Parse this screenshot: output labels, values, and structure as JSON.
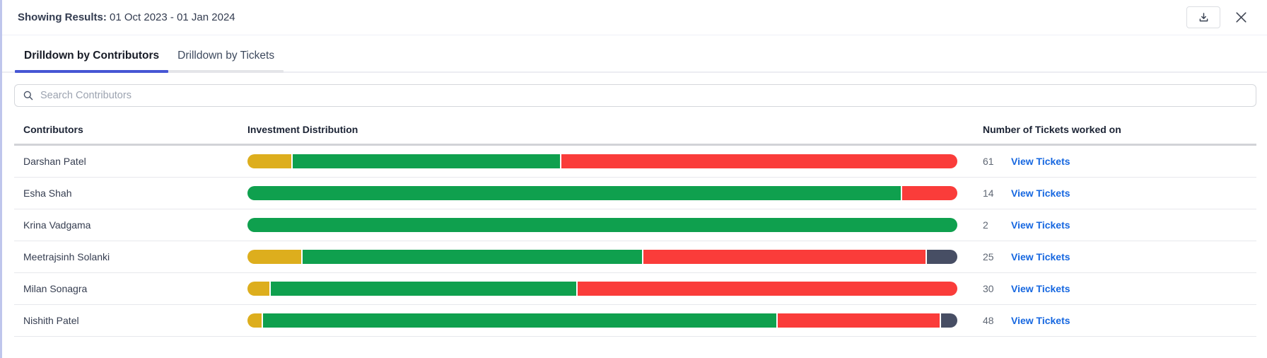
{
  "modal": {
    "results_label": "Showing Results:",
    "date_range": "01 Oct 2023 - 01 Jan 2024"
  },
  "tabs": [
    {
      "label": "Drilldown by Contributors",
      "active": true
    },
    {
      "label": "Drilldown by Tickets",
      "active": false
    }
  ],
  "search": {
    "placeholder": "Search Contributors",
    "icon": "search-icon"
  },
  "icons": {
    "download": "download-icon",
    "close": "close-icon"
  },
  "table": {
    "columns": {
      "contributors": "Contributors",
      "distribution": "Investment Distribution",
      "tickets": "Number of Tickets worked on"
    },
    "link_label": "View Tickets",
    "rows": [
      {
        "name": "Darshan Patel",
        "tickets": "61",
        "segments": [
          {
            "color": "yellow",
            "pct": 6.2
          },
          {
            "color": "green",
            "pct": 37.8
          },
          {
            "color": "red",
            "pct": 56.0
          }
        ]
      },
      {
        "name": "Esha Shah",
        "tickets": "14",
        "segments": [
          {
            "color": "green",
            "pct": 92.2
          },
          {
            "color": "red",
            "pct": 7.8
          }
        ]
      },
      {
        "name": "Krina Vadgama",
        "tickets": "2",
        "segments": [
          {
            "color": "green",
            "pct": 100
          }
        ]
      },
      {
        "name": "Meetrajsinh Solanki",
        "tickets": "25",
        "segments": [
          {
            "color": "yellow",
            "pct": 7.6
          },
          {
            "color": "green",
            "pct": 48.1
          },
          {
            "color": "red",
            "pct": 40.0
          },
          {
            "color": "dark",
            "pct": 4.3
          }
        ]
      },
      {
        "name": "Milan Sonagra",
        "tickets": "30",
        "segments": [
          {
            "color": "yellow",
            "pct": 3.1
          },
          {
            "color": "green",
            "pct": 43.2
          },
          {
            "color": "red",
            "pct": 53.7
          }
        ]
      },
      {
        "name": "Nishith Patel",
        "tickets": "48",
        "segments": [
          {
            "color": "yellow",
            "pct": 2.0
          },
          {
            "color": "green",
            "pct": 72.7
          },
          {
            "color": "red",
            "pct": 23.0
          },
          {
            "color": "dark",
            "pct": 2.3
          }
        ]
      }
    ]
  },
  "colors": {
    "yellow": "#DDAE1D",
    "green": "#0FA04E",
    "red": "#FA3C3A",
    "dark": "#474E64",
    "link": "#1667E0",
    "active_underline": "#4656D4",
    "inactive_underline": "#E4E5E9"
  }
}
